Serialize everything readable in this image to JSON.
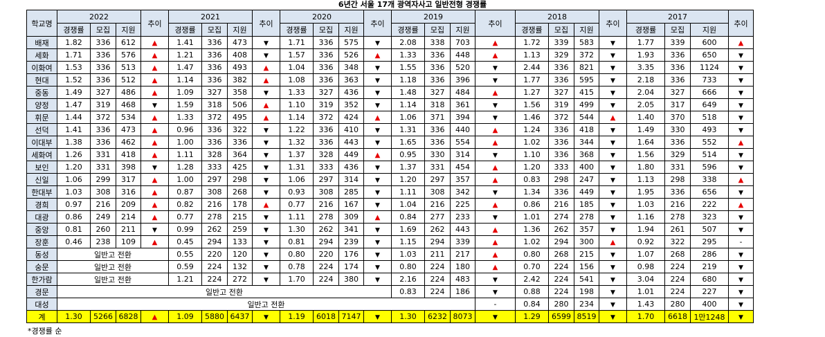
{
  "title": "6년간 서울 17개 광역자사고 일반전형 경쟁률",
  "header": {
    "school": "학교명",
    "trend": "추이",
    "years": [
      "2022",
      "2021",
      "2020",
      "2019",
      "2018",
      "2017"
    ],
    "sub": [
      "경쟁률",
      "모집",
      "지원"
    ]
  },
  "up_symbol": "▲",
  "down_symbol": "▼",
  "rows": [
    {
      "name": "배재",
      "c": [
        [
          "1.82",
          "336",
          "612",
          "u"
        ],
        [
          "1.41",
          "336",
          "473",
          "d"
        ],
        [
          "1.71",
          "336",
          "575",
          "d"
        ],
        [
          "2.08",
          "338",
          "703",
          "u"
        ],
        [
          "1.72",
          "339",
          "583",
          "d"
        ],
        [
          "1.77",
          "339",
          "600",
          "u"
        ]
      ]
    },
    {
      "name": "세화",
      "c": [
        [
          "1.71",
          "336",
          "576",
          "u"
        ],
        [
          "1.21",
          "336",
          "408",
          "d"
        ],
        [
          "1.57",
          "336",
          "526",
          "u"
        ],
        [
          "1.33",
          "336",
          "448",
          "u"
        ],
        [
          "1.13",
          "329",
          "372",
          "d"
        ],
        [
          "1.93",
          "336",
          "650",
          "d"
        ]
      ]
    },
    {
      "name": "이화여",
      "c": [
        [
          "1.53",
          "336",
          "513",
          "u"
        ],
        [
          "1.47",
          "336",
          "493",
          "u"
        ],
        [
          "1.04",
          "336",
          "348",
          "d"
        ],
        [
          "1.55",
          "336",
          "520",
          "d"
        ],
        [
          "2.44",
          "336",
          "821",
          "d"
        ],
        [
          "3.35",
          "336",
          "1124",
          "d"
        ]
      ]
    },
    {
      "name": "현대",
      "c": [
        [
          "1.52",
          "336",
          "512",
          "u"
        ],
        [
          "1.14",
          "336",
          "382",
          "u"
        ],
        [
          "1.08",
          "336",
          "363",
          "d"
        ],
        [
          "1.18",
          "336",
          "396",
          "d"
        ],
        [
          "1.77",
          "336",
          "595",
          "d"
        ],
        [
          "2.18",
          "336",
          "733",
          "d"
        ]
      ]
    },
    {
      "name": "중동",
      "c": [
        [
          "1.49",
          "327",
          "486",
          "u"
        ],
        [
          "1.09",
          "327",
          "358",
          "d"
        ],
        [
          "1.33",
          "327",
          "436",
          "d"
        ],
        [
          "1.48",
          "327",
          "484",
          "u"
        ],
        [
          "1.27",
          "327",
          "415",
          "d"
        ],
        [
          "2.04",
          "327",
          "666",
          "d"
        ]
      ]
    },
    {
      "name": "양정",
      "c": [
        [
          "1.47",
          "319",
          "468",
          "d"
        ],
        [
          "1.59",
          "318",
          "506",
          "u"
        ],
        [
          "1.10",
          "319",
          "352",
          "d"
        ],
        [
          "1.14",
          "318",
          "361",
          "d"
        ],
        [
          "1.56",
          "319",
          "499",
          "d"
        ],
        [
          "2.05",
          "317",
          "649",
          "d"
        ]
      ]
    },
    {
      "name": "휘문",
      "c": [
        [
          "1.44",
          "372",
          "534",
          "u"
        ],
        [
          "1.33",
          "372",
          "495",
          "u"
        ],
        [
          "1.14",
          "372",
          "424",
          "u"
        ],
        [
          "1.06",
          "371",
          "394",
          "d"
        ],
        [
          "1.46",
          "372",
          "544",
          "u"
        ],
        [
          "1.40",
          "370",
          "518",
          "d"
        ]
      ]
    },
    {
      "name": "선덕",
      "c": [
        [
          "1.41",
          "336",
          "473",
          "u"
        ],
        [
          "0.96",
          "336",
          "322",
          "d"
        ],
        [
          "1.22",
          "336",
          "410",
          "d"
        ],
        [
          "1.31",
          "336",
          "440",
          "u"
        ],
        [
          "1.24",
          "336",
          "418",
          "d"
        ],
        [
          "1.49",
          "330",
          "493",
          "d"
        ]
      ]
    },
    {
      "name": "이대부",
      "c": [
        [
          "1.38",
          "336",
          "462",
          "u"
        ],
        [
          "1.00",
          "336",
          "336",
          "d"
        ],
        [
          "1.32",
          "336",
          "443",
          "d"
        ],
        [
          "1.65",
          "336",
          "554",
          "u"
        ],
        [
          "1.02",
          "336",
          "344",
          "d"
        ],
        [
          "1.64",
          "336",
          "552",
          "u"
        ]
      ]
    },
    {
      "name": "세화여",
      "c": [
        [
          "1.26",
          "331",
          "418",
          "u"
        ],
        [
          "1.11",
          "328",
          "364",
          "d"
        ],
        [
          "1.37",
          "328",
          "449",
          "u"
        ],
        [
          "0.95",
          "330",
          "314",
          "d"
        ],
        [
          "1.10",
          "336",
          "368",
          "d"
        ],
        [
          "1.56",
          "329",
          "514",
          "d"
        ]
      ]
    },
    {
      "name": "보인",
      "c": [
        [
          "1.20",
          "331",
          "398",
          "d"
        ],
        [
          "1.28",
          "333",
          "425",
          "d"
        ],
        [
          "1.31",
          "333",
          "436",
          "d"
        ],
        [
          "1.37",
          "331",
          "454",
          "u"
        ],
        [
          "1.20",
          "333",
          "400",
          "d"
        ],
        [
          "1.80",
          "331",
          "596",
          "d"
        ]
      ]
    },
    {
      "name": "신일",
      "c": [
        [
          "1.06",
          "299",
          "317",
          "u"
        ],
        [
          "1.00",
          "297",
          "298",
          "d"
        ],
        [
          "1.06",
          "297",
          "314",
          "d"
        ],
        [
          "1.20",
          "297",
          "357",
          "u"
        ],
        [
          "0.83",
          "298",
          "247",
          "d"
        ],
        [
          "1.13",
          "298",
          "338",
          "u"
        ]
      ]
    },
    {
      "name": "한대부",
      "c": [
        [
          "1.03",
          "308",
          "316",
          "u"
        ],
        [
          "0.87",
          "308",
          "268",
          "d"
        ],
        [
          "0.93",
          "308",
          "285",
          "d"
        ],
        [
          "1.11",
          "308",
          "342",
          "d"
        ],
        [
          "1.34",
          "336",
          "449",
          "d"
        ],
        [
          "1.95",
          "336",
          "656",
          "d"
        ]
      ]
    },
    {
      "name": "경희",
      "c": [
        [
          "0.97",
          "216",
          "209",
          "u"
        ],
        [
          "0.82",
          "216",
          "178",
          "u"
        ],
        [
          "0.77",
          "216",
          "167",
          "d"
        ],
        [
          "1.04",
          "216",
          "225",
          "u"
        ],
        [
          "0.86",
          "216",
          "185",
          "d"
        ],
        [
          "1.03",
          "216",
          "222",
          "u"
        ]
      ]
    },
    {
      "name": "대광",
      "c": [
        [
          "0.86",
          "249",
          "214",
          "u"
        ],
        [
          "0.77",
          "278",
          "215",
          "d"
        ],
        [
          "1.11",
          "278",
          "309",
          "u"
        ],
        [
          "0.84",
          "277",
          "233",
          "d"
        ],
        [
          "1.01",
          "274",
          "278",
          "d"
        ],
        [
          "1.16",
          "278",
          "323",
          "d"
        ]
      ]
    },
    {
      "name": "중앙",
      "c": [
        [
          "0.81",
          "260",
          "211",
          "d"
        ],
        [
          "0.99",
          "262",
          "259",
          "d"
        ],
        [
          "1.30",
          "262",
          "341",
          "d"
        ],
        [
          "1.69",
          "262",
          "443",
          "u"
        ],
        [
          "1.36",
          "262",
          "357",
          "d"
        ],
        [
          "1.94",
          "261",
          "507",
          "d"
        ]
      ]
    },
    {
      "name": "장훈",
      "c": [
        [
          "0.46",
          "238",
          "109",
          "u"
        ],
        [
          "0.45",
          "294",
          "133",
          "d"
        ],
        [
          "0.81",
          "294",
          "239",
          "d"
        ],
        [
          "1.15",
          "294",
          "339",
          "u"
        ],
        [
          "1.02",
          "294",
          "300",
          "u"
        ],
        [
          "0.92",
          "322",
          "295",
          "-"
        ]
      ]
    },
    {
      "name": "동성",
      "conv22": "일반고 전환",
      "c": [
        null,
        [
          "0.55",
          "220",
          "120",
          "d"
        ],
        [
          "0.80",
          "220",
          "176",
          "d"
        ],
        [
          "1.03",
          "211",
          "217",
          "u"
        ],
        [
          "0.80",
          "268",
          "215",
          "d"
        ],
        [
          "1.07",
          "268",
          "286",
          "d"
        ]
      ]
    },
    {
      "name": "숭문",
      "conv22": "일반고 전환",
      "c": [
        null,
        [
          "0.59",
          "224",
          "132",
          "d"
        ],
        [
          "0.78",
          "224",
          "174",
          "d"
        ],
        [
          "0.80",
          "224",
          "180",
          "u"
        ],
        [
          "0.70",
          "224",
          "156",
          "d"
        ],
        [
          "0.98",
          "224",
          "219",
          "d"
        ]
      ]
    },
    {
      "name": "한가람",
      "conv22": "일반고 전환",
      "c": [
        null,
        [
          "1.21",
          "224",
          "272",
          "d"
        ],
        [
          "1.70",
          "224",
          "380",
          "d"
        ],
        [
          "2.16",
          "224",
          "483",
          "d"
        ],
        [
          "2.42",
          "224",
          "541",
          "d"
        ],
        [
          "3.04",
          "224",
          "680",
          "d"
        ]
      ]
    },
    {
      "name": "경문",
      "convA": "일반고 전환",
      "c": [
        null,
        null,
        null,
        [
          "0.83",
          "224",
          "186",
          "d"
        ],
        [
          "0.88",
          "224",
          "198",
          "d"
        ],
        [
          "1.01",
          "224",
          "227",
          "d"
        ]
      ]
    },
    {
      "name": "대성",
      "convB": "일반고 전환",
      "c": [
        null,
        null,
        null,
        null,
        [
          "0.84",
          "280",
          "234",
          "d"
        ],
        [
          "1.43",
          "280",
          "400",
          "d"
        ]
      ],
      "t18": "-"
    },
    {
      "name": "계",
      "total": true,
      "c": [
        [
          "1.30",
          "5266",
          "6828",
          "u"
        ],
        [
          "1.09",
          "5880",
          "6437",
          "d"
        ],
        [
          "1.19",
          "6018",
          "7147",
          "d"
        ],
        [
          "1.30",
          "6232",
          "8073",
          "d"
        ],
        [
          "1.29",
          "6599",
          "8519",
          "d"
        ],
        [
          "1.70",
          "6618",
          "1만1248",
          "d"
        ]
      ]
    }
  ],
  "note": "*경쟁률 순"
}
